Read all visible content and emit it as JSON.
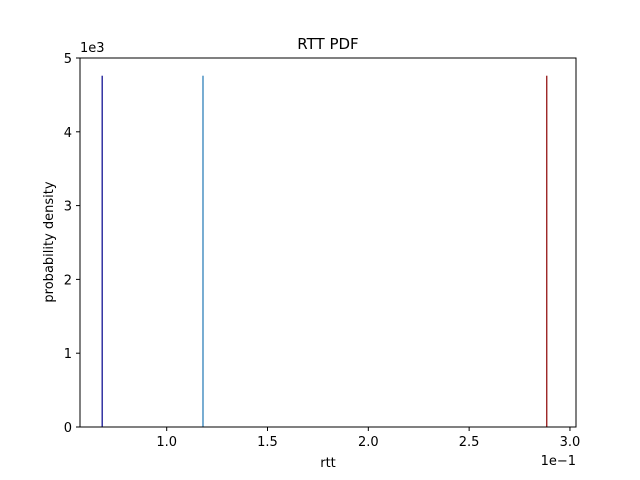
{
  "chart_data": {
    "type": "bar",
    "title": "RTT PDF",
    "xlabel": "rtt",
    "ylabel": "probability density",
    "x_offset_label": "1e−1",
    "y_offset_label": "1e3",
    "xlim": [
      0.057,
      0.303
    ],
    "ylim": [
      0,
      5000
    ],
    "grid": false,
    "x_ticks": [
      {
        "value": 0.1,
        "label": "1.0"
      },
      {
        "value": 0.15,
        "label": "1.5"
      },
      {
        "value": 0.2,
        "label": "2.0"
      },
      {
        "value": 0.25,
        "label": "2.5"
      },
      {
        "value": 0.3,
        "label": "3.0"
      }
    ],
    "y_ticks": [
      {
        "value": 0,
        "label": "0"
      },
      {
        "value": 1000,
        "label": "1"
      },
      {
        "value": 2000,
        "label": "2"
      },
      {
        "value": 3000,
        "label": "3"
      },
      {
        "value": 4000,
        "label": "4"
      },
      {
        "value": 5000,
        "label": "5"
      }
    ],
    "series": [
      {
        "color": "#00008b",
        "values": [
          {
            "x": 0.068,
            "y": 4760
          }
        ]
      },
      {
        "color": "#1f77b4",
        "values": [
          {
            "x": 0.118,
            "y": 4760
          }
        ]
      },
      {
        "color": "#8b0000",
        "values": [
          {
            "x": 0.2885,
            "y": 4760
          }
        ]
      }
    ]
  }
}
